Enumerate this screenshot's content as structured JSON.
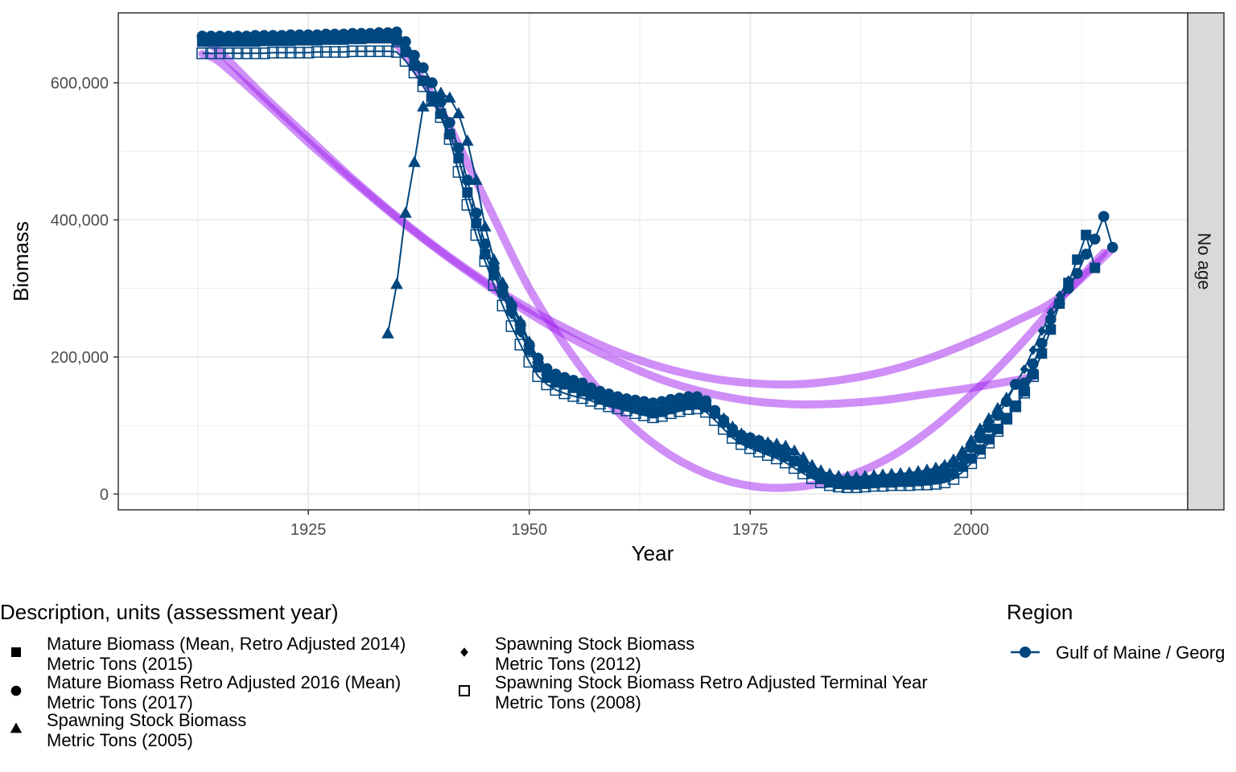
{
  "chart_data": {
    "type": "line",
    "xlabel": "Year",
    "ylabel": "Biomass",
    "xlim": [
      1903.5,
      2024.5
    ],
    "ylim": [
      -23000,
      702000
    ],
    "x_ticks": [
      1925,
      1950,
      1975,
      2000
    ],
    "x_tick_labels": [
      "1925",
      "1950",
      "1975",
      "2000"
    ],
    "y_ticks": [
      0,
      200000,
      400000,
      600000
    ],
    "y_tick_labels": [
      "0",
      "200,000",
      "400,000",
      "600,000"
    ],
    "facet_label": "No age",
    "grid": true,
    "legend_position": "bottom",
    "series": [
      {
        "name": "Mature Biomass (Mean, Retro Adjusted 2014) Metric Tons (2015)",
        "shape": "square",
        "x": [
          1913,
          1914,
          1915,
          1916,
          1917,
          1918,
          1919,
          1920,
          1921,
          1922,
          1923,
          1924,
          1925,
          1926,
          1927,
          1928,
          1929,
          1930,
          1931,
          1932,
          1933,
          1934,
          1935,
          1936,
          1937,
          1938,
          1939,
          1940,
          1941,
          1942,
          1943,
          1944,
          1945,
          1946,
          1947,
          1948,
          1949,
          1950,
          1951,
          1952,
          1953,
          1954,
          1955,
          1956,
          1957,
          1958,
          1959,
          1960,
          1961,
          1962,
          1963,
          1964,
          1965,
          1966,
          1967,
          1968,
          1969,
          1970,
          1971,
          1972,
          1973,
          1974,
          1975,
          1976,
          1977,
          1978,
          1979,
          1980,
          1981,
          1982,
          1983,
          1984,
          1985,
          1986,
          1987,
          1988,
          1989,
          1990,
          1991,
          1992,
          1993,
          1994,
          1995,
          1996,
          1997,
          1998,
          1999,
          2000,
          2001,
          2002,
          2003,
          2004,
          2005,
          2006,
          2007,
          2008,
          2009,
          2010,
          2011,
          2012,
          2013,
          2014
        ],
        "y": [
          660000,
          660000,
          660000,
          660000,
          660000,
          660000,
          660000,
          661000,
          661000,
          661000,
          661000,
          662000,
          662000,
          662000,
          663000,
          663000,
          663000,
          664000,
          664000,
          665000,
          665000,
          665000,
          662000,
          645000,
          625000,
          603000,
          580000,
          555000,
          525000,
          490000,
          440000,
          395000,
          350000,
          320000,
          295000,
          268000,
          240000,
          210000,
          185000,
          170000,
          163000,
          160000,
          155000,
          150000,
          145000,
          138000,
          135000,
          132000,
          128000,
          125000,
          122000,
          118000,
          120000,
          124000,
          128000,
          130000,
          132000,
          128000,
          118000,
          105000,
          90000,
          80000,
          75000,
          70000,
          65000,
          60000,
          55000,
          48000,
          40000,
          30000,
          22000,
          17000,
          15000,
          14000,
          14000,
          15000,
          16000,
          17000,
          17000,
          18000,
          18000,
          19000,
          20000,
          22000,
          25000,
          30000,
          40000,
          52000,
          65000,
          80000,
          95000,
          110000,
          128000,
          150000,
          175000,
          205000,
          240000,
          278000,
          308000,
          342000,
          378000,
          330000
        ]
      },
      {
        "name": "Mature Biomass Retro Adjusted 2016 (Mean) Metric Tons (2017)",
        "shape": "circle",
        "x": [
          1913,
          1914,
          1915,
          1916,
          1917,
          1918,
          1919,
          1920,
          1921,
          1922,
          1923,
          1924,
          1925,
          1926,
          1927,
          1928,
          1929,
          1930,
          1931,
          1932,
          1933,
          1934,
          1935,
          1936,
          1937,
          1938,
          1939,
          1940,
          1941,
          1942,
          1943,
          1944,
          1945,
          1946,
          1947,
          1948,
          1949,
          1950,
          1951,
          1952,
          1953,
          1954,
          1955,
          1956,
          1957,
          1958,
          1959,
          1960,
          1961,
          1962,
          1963,
          1964,
          1965,
          1966,
          1967,
          1968,
          1969,
          1970,
          1971,
          1972,
          1973,
          1974,
          1975,
          1976,
          1977,
          1978,
          1979,
          1980,
          1981,
          1982,
          1983,
          1984,
          1985,
          1986,
          1987,
          1988,
          1989,
          1990,
          1991,
          1992,
          1993,
          1994,
          1995,
          1996,
          1997,
          1998,
          1999,
          2000,
          2001,
          2002,
          2003,
          2004,
          2005,
          2006,
          2007,
          2008,
          2009,
          2010,
          2011,
          2012,
          2013,
          2014,
          2015,
          2016
        ],
        "y": [
          668000,
          668000,
          668000,
          668000,
          668000,
          668000,
          669000,
          669000,
          669000,
          669000,
          670000,
          670000,
          670000,
          670000,
          671000,
          671000,
          671000,
          672000,
          672000,
          672000,
          673000,
          673000,
          674000,
          660000,
          640000,
          622000,
          600000,
          572000,
          542000,
          505000,
          458000,
          410000,
          365000,
          330000,
          302000,
          275000,
          248000,
          218000,
          198000,
          183000,
          175000,
          170000,
          166000,
          162000,
          155000,
          150000,
          146000,
          142000,
          139000,
          137000,
          135000,
          133000,
          135000,
          138000,
          140000,
          142000,
          142000,
          136000,
          122000,
          108000,
          95000,
          86000,
          82000,
          78000,
          72000,
          66000,
          58000,
          48000,
          38000,
          30000,
          24000,
          21000,
          20000,
          20000,
          20000,
          21000,
          22000,
          22000,
          23000,
          24000,
          25000,
          26000,
          28000,
          32000,
          38000,
          45000,
          55000,
          68000,
          82000,
          97000,
          115000,
          135000,
          160000,
          162000,
          190000,
          220000,
          255000,
          278000,
          300000,
          322000,
          350000,
          372000,
          405000,
          360000
        ]
      },
      {
        "name": "Spawning Stock Biomass Metric Tons (2005)",
        "shape": "triangle",
        "x": [
          1934,
          1935,
          1936,
          1937,
          1938,
          1939,
          1940,
          1941,
          1942,
          1943,
          1944,
          1945,
          1946,
          1947,
          1948,
          1949,
          1950,
          1951,
          1952,
          1953,
          1954,
          1955,
          1956,
          1957,
          1958,
          1959,
          1960,
          1961,
          1962,
          1963,
          1964,
          1965,
          1966,
          1967,
          1968,
          1969,
          1970,
          1971,
          1972,
          1973,
          1974,
          1975,
          1976,
          1977,
          1978,
          1979,
          1980,
          1981,
          1982,
          1983,
          1984,
          1985,
          1986,
          1987,
          1988,
          1989,
          1990,
          1991,
          1992,
          1993,
          1994,
          1995,
          1996,
          1997,
          1998,
          1999,
          2000,
          2001,
          2002,
          2003,
          2004
        ],
        "y": [
          234000,
          306000,
          410000,
          484000,
          565000,
          572000,
          585000,
          578000,
          555000,
          515000,
          458000,
          390000,
          342000,
          308000,
          280000,
          252000,
          222000,
          198000,
          180000,
          170000,
          164000,
          160000,
          156000,
          152000,
          148000,
          143000,
          140000,
          137000,
          133000,
          127000,
          121000,
          124000,
          128000,
          131000,
          132000,
          130000,
          126000,
          118000,
          110000,
          98000,
          88000,
          82000,
          78000,
          75000,
          73000,
          70000,
          63000,
          53000,
          42000,
          34000,
          29000,
          26000,
          25000,
          25000,
          26000,
          27000,
          28000,
          29000,
          30000,
          31000,
          33000,
          35000,
          38000,
          42000,
          50000,
          62000,
          78000,
          95000,
          110000,
          125000,
          140000
        ]
      },
      {
        "name": "Spawning Stock Biomass Metric Tons (2012)",
        "shape": "diamond",
        "x": [
          1946,
          1947,
          1948,
          1949,
          1950,
          1951,
          1952,
          1953,
          1954,
          1955,
          1956,
          1957,
          1958,
          1959,
          1960,
          1961,
          1962,
          1963,
          1964,
          1965,
          1966,
          1967,
          1968,
          1969,
          1970,
          1971,
          1972,
          1973,
          1974,
          1975,
          1976,
          1977,
          1978,
          1979,
          1980,
          1981,
          1982,
          1983,
          1984,
          1985,
          1986,
          1987,
          1988,
          1989,
          1990,
          1991,
          1992,
          1993,
          1994,
          1995,
          1996,
          1997,
          1998,
          1999,
          2000,
          2001,
          2002,
          2003,
          2004,
          2005,
          2006,
          2007,
          2008,
          2009,
          2010,
          2011
        ],
        "y": [
          320000,
          290000,
          262000,
          235000,
          208000,
          188000,
          175000,
          168000,
          163000,
          159000,
          155000,
          150000,
          146000,
          142000,
          138000,
          135000,
          132000,
          128000,
          126000,
          128000,
          131000,
          133000,
          135000,
          134000,
          128000,
          115000,
          102000,
          90000,
          82000,
          77000,
          73000,
          68000,
          63000,
          56000,
          48000,
          39000,
          31000,
          25000,
          21000,
          19000,
          18000,
          18000,
          19000,
          20000,
          21000,
          22000,
          23000,
          24000,
          25000,
          27000,
          30000,
          36000,
          45000,
          58000,
          72000,
          88000,
          105000,
          122000,
          140000,
          160000,
          182000,
          210000,
          238000,
          265000,
          290000,
          312000
        ]
      },
      {
        "name": "Spawning Stock Biomass Retro Adjusted Terminal Year Metric Tons (2008)",
        "shape": "open-square",
        "x": [
          1913,
          1914,
          1915,
          1916,
          1917,
          1918,
          1919,
          1920,
          1921,
          1922,
          1923,
          1924,
          1925,
          1926,
          1927,
          1928,
          1929,
          1930,
          1931,
          1932,
          1933,
          1934,
          1935,
          1936,
          1937,
          1938,
          1939,
          1940,
          1941,
          1942,
          1943,
          1944,
          1945,
          1946,
          1947,
          1948,
          1949,
          1950,
          1951,
          1952,
          1953,
          1954,
          1955,
          1956,
          1957,
          1958,
          1959,
          1960,
          1961,
          1962,
          1963,
          1964,
          1965,
          1966,
          1967,
          1968,
          1969,
          1970,
          1971,
          1972,
          1973,
          1974,
          1975,
          1976,
          1977,
          1978,
          1979,
          1980,
          1981,
          1982,
          1983,
          1984,
          1985,
          1986,
          1987,
          1988,
          1989,
          1990,
          1991,
          1992,
          1993,
          1994,
          1995,
          1996,
          1997,
          1998,
          1999,
          2000,
          2001,
          2002,
          2003,
          2004,
          2005,
          2006,
          2007
        ],
        "y": [
          643000,
          643000,
          643000,
          643000,
          643000,
          643000,
          643000,
          643000,
          644000,
          644000,
          644000,
          644000,
          644000,
          645000,
          645000,
          645000,
          645000,
          646000,
          646000,
          646000,
          646000,
          646000,
          645000,
          632000,
          615000,
          595000,
          575000,
          550000,
          518000,
          470000,
          422000,
          378000,
          340000,
          305000,
          275000,
          245000,
          218000,
          193000,
          172000,
          160000,
          152000,
          147000,
          143000,
          140000,
          136000,
          132000,
          128000,
          125000,
          122000,
          118000,
          115000,
          112000,
          114000,
          118000,
          121000,
          124000,
          125000,
          120000,
          108000,
          95000,
          82000,
          73000,
          67000,
          62000,
          57000,
          52000,
          46000,
          38000,
          30000,
          23000,
          17000,
          13000,
          11000,
          10000,
          10000,
          11000,
          12000,
          12000,
          13000,
          13000,
          13000,
          14000,
          14000,
          15000,
          17000,
          22000,
          32000,
          45000,
          60000,
          75000,
          92000,
          110000,
          128000,
          148000,
          172000
        ]
      }
    ],
    "smooth_curves": [
      {
        "x": [
          1913,
          1915,
          1920,
          1925,
          1930,
          1935,
          1940,
          1945,
          1950,
          1955,
          1960,
          1965,
          1970,
          1975,
          1980,
          1985,
          1990,
          1995,
          2000,
          2005,
          2010,
          2016
        ],
        "y": [
          665000,
          645000,
          580000,
          520000,
          460000,
          405000,
          355000,
          310000,
          270000,
          236000,
          207000,
          185000,
          170000,
          162000,
          160000,
          166000,
          178000,
          197000,
          222000,
          252000,
          287000,
          358000
        ]
      },
      {
        "x": [
          1913,
          1915,
          1920,
          1925,
          1930,
          1935,
          1940,
          1945,
          1950,
          1955,
          1960,
          1965,
          1970,
          1975,
          1980,
          1985,
          1990,
          1995,
          2000,
          2005,
          2007
        ],
        "y": [
          642000,
          630000,
          573000,
          513000,
          457000,
          403000,
          353000,
          307000,
          264000,
          226000,
          194000,
          167000,
          148000,
          136000,
          131000,
          132000,
          137000,
          146000,
          155000,
          166000,
          171000
        ]
      },
      {
        "x": [
          1934,
          1936,
          1940,
          1945,
          1950,
          1955,
          1960,
          1965,
          1970,
          1975,
          1980,
          1985,
          1990,
          1995,
          2000,
          2005,
          2010,
          2015
        ],
        "y": [
          670000,
          640000,
          560000,
          430000,
          300000,
          200000,
          120000,
          65000,
          30000,
          12000,
          10000,
          22000,
          48000,
          90000,
          145000,
          210000,
          283000,
          352000
        ]
      }
    ],
    "colors": {
      "series": "#00467F",
      "smooth": "#A020F0",
      "grid": "#EBEBEB",
      "panel_border": "#333333",
      "strip_fill": "#D9D9D9"
    }
  },
  "legend": {
    "description_title": "Description, units (assessment year)",
    "items": [
      {
        "shape": "square",
        "line1": "Mature Biomass (Mean, Retro Adjusted 2014)",
        "line2": "Metric Tons (2015)"
      },
      {
        "shape": "circle",
        "line1": "Mature Biomass Retro Adjusted 2016 (Mean)",
        "line2": "Metric Tons (2017)"
      },
      {
        "shape": "triangle",
        "line1": "Spawning Stock Biomass",
        "line2": "Metric Tons (2005)"
      },
      {
        "shape": "diamond",
        "line1": "Spawning Stock Biomass",
        "line2": "Metric Tons (2012)"
      },
      {
        "shape": "open-square",
        "line1": "Spawning Stock Biomass Retro Adjusted Terminal Year",
        "line2": "Metric Tons (2008)"
      }
    ],
    "region_title": "Region",
    "region_label": "Gulf of Maine / Georg"
  }
}
